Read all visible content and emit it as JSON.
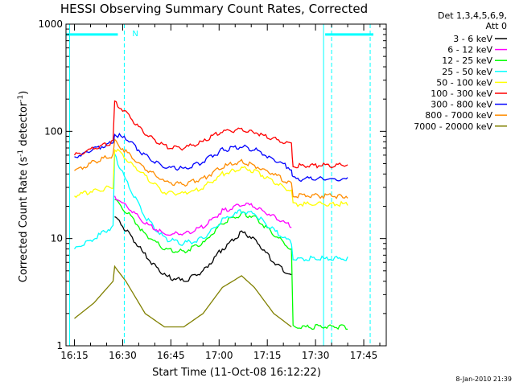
{
  "chart_data": {
    "type": "line",
    "title": "HESSI Observing Summary Count Rates, Corrected",
    "xlabel": "Start Time (11-Oct-08 16:12:22)",
    "ylabel_main": "Corrected Count Rate (s",
    "ylabel_sup1": "-1",
    "ylabel_mid": " detector",
    "ylabel_sup2": "-1",
    "ylabel_end": ")",
    "y_scale": "log",
    "ylim": [
      1,
      1000
    ],
    "xlim": [
      "16:12:22",
      "17:52:00"
    ],
    "x_ticks": [
      "16:15",
      "16:30",
      "16:45",
      "17:00",
      "17:15",
      "17:30",
      "17:45"
    ],
    "y_ticks": [
      "1",
      "10",
      "100",
      "1000"
    ],
    "legend_header": [
      "Det 1,3,4,5,6,9,",
      "Att 0"
    ],
    "legend_placement": "right",
    "timestamp": "8-Jan-2010 21:39",
    "flag_label": "N",
    "x_minutes": [
      0,
      6,
      12,
      12.5,
      16,
      22,
      28,
      34,
      40,
      46,
      52,
      56,
      62,
      67.5,
      68,
      74,
      80,
      85
    ],
    "series": [
      {
        "name": "3 - 6 keV",
        "color": "#000000",
        "values": [
          null,
          null,
          null,
          16,
          12,
          7,
          4.5,
          4,
          5,
          8,
          11.5,
          10,
          6,
          4.5,
          null,
          null,
          null,
          null
        ]
      },
      {
        "name": "6 - 12 keV",
        "color": "#ff00ff",
        "values": [
          null,
          null,
          null,
          25,
          20,
          14,
          11,
          11,
          13,
          18,
          21,
          20,
          16,
          13,
          null,
          null,
          null,
          null
        ]
      },
      {
        "name": "12 - 25 keV",
        "color": "#00ff00",
        "values": [
          null,
          null,
          null,
          23,
          18,
          11,
          8,
          7.5,
          9,
          14,
          17,
          16,
          11,
          8,
          1.5,
          1.5,
          1.5,
          1.5
        ]
      },
      {
        "name": "25 - 50 keV",
        "color": "#00ffff",
        "values": [
          8,
          10,
          13,
          60,
          35,
          16,
          10,
          9,
          10,
          15,
          18,
          17,
          12,
          9,
          6.5,
          6.5,
          6.5,
          6.5
        ]
      },
      {
        "name": "50 - 100 keV",
        "color": "#ffff00",
        "values": [
          25,
          28,
          30,
          70,
          55,
          38,
          27,
          26,
          30,
          40,
          45,
          43,
          34,
          28,
          21,
          21,
          21,
          21
        ]
      },
      {
        "name": "100 - 300 keV",
        "color": "#ff0000",
        "values": [
          60,
          70,
          80,
          185,
          150,
          95,
          72,
          70,
          80,
          100,
          105,
          98,
          85,
          75,
          48,
          48,
          48,
          48
        ]
      },
      {
        "name": "300 - 800 keV",
        "color": "#0000ff",
        "values": [
          58,
          68,
          78,
          95,
          85,
          60,
          46,
          45,
          52,
          67,
          72,
          68,
          55,
          45,
          36,
          36,
          36,
          36
        ]
      },
      {
        "name": "800 - 7000 keV",
        "color": "#ff8c00",
        "values": [
          43,
          52,
          60,
          80,
          65,
          45,
          34,
          32,
          36,
          47,
          52,
          48,
          40,
          32,
          25,
          25,
          25,
          25
        ]
      },
      {
        "name": "7000 - 20000 keV",
        "color": "#808000",
        "values": [
          1.8,
          2.5,
          4,
          5.5,
          4,
          2,
          1.5,
          1.5,
          2,
          3.5,
          4.5,
          3.5,
          2,
          1.5,
          null,
          null,
          null,
          null
        ]
      }
    ],
    "cyan_bar_level": 800,
    "grid": false
  }
}
